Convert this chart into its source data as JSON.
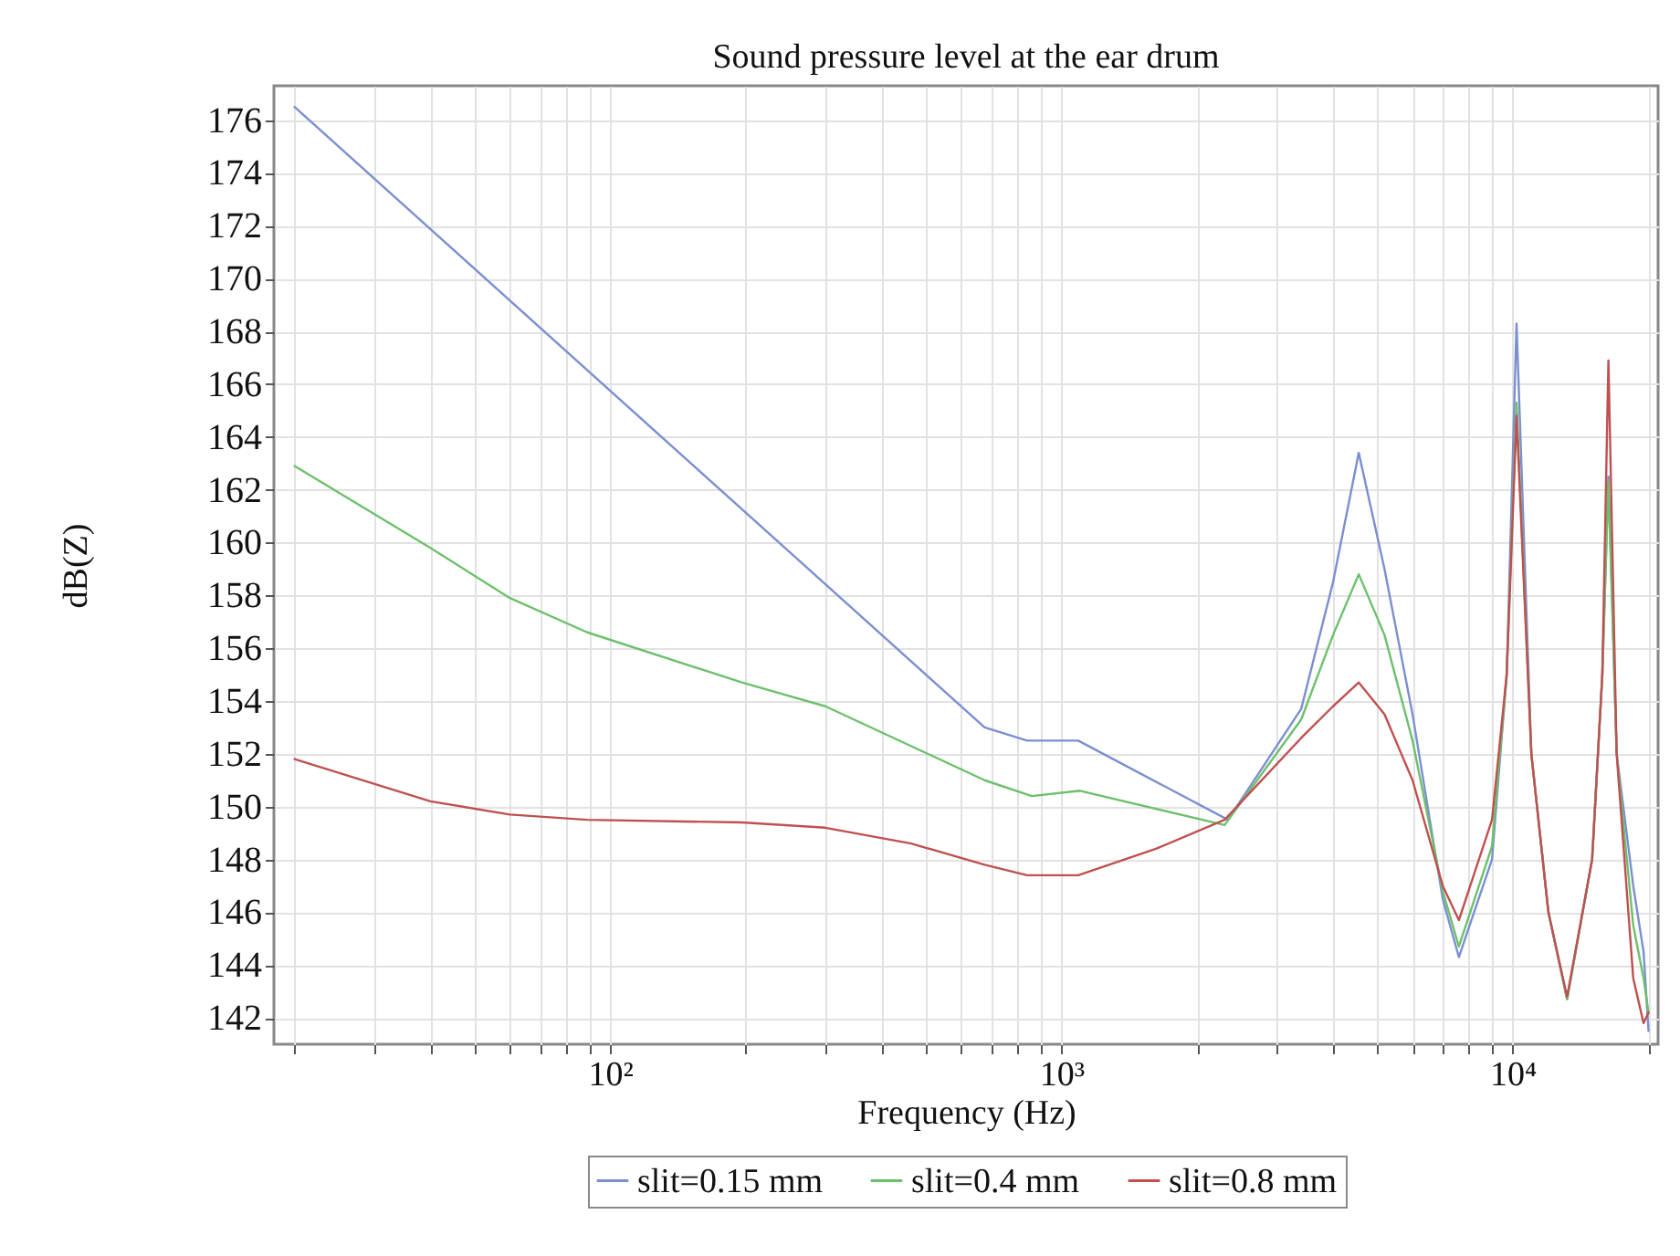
{
  "chart_data": {
    "type": "line",
    "title": "Sound pressure level at the ear drum",
    "xlabel": "Frequency (Hz)",
    "ylabel": "dB(Z)",
    "log": "x",
    "grid": true,
    "legend": "bottom",
    "xlim": [
      18,
      21000
    ],
    "ylim": [
      141,
      177.3
    ],
    "xticks": [
      {
        "value": 20,
        "label": null
      },
      {
        "value": 30,
        "label": null
      },
      {
        "value": 40,
        "label": null
      },
      {
        "value": 50,
        "label": null
      },
      {
        "value": 60,
        "label": null
      },
      {
        "value": 70,
        "label": null
      },
      {
        "value": 80,
        "label": null
      },
      {
        "value": 90,
        "label": null
      },
      {
        "value": 100,
        "label": "10²"
      },
      {
        "value": 200,
        "label": null
      },
      {
        "value": 300,
        "label": null
      },
      {
        "value": 400,
        "label": null
      },
      {
        "value": 500,
        "label": null
      },
      {
        "value": 600,
        "label": null
      },
      {
        "value": 700,
        "label": null
      },
      {
        "value": 800,
        "label": null
      },
      {
        "value": 900,
        "label": null
      },
      {
        "value": 1000,
        "label": "10³"
      },
      {
        "value": 2000,
        "label": null
      },
      {
        "value": 3000,
        "label": null
      },
      {
        "value": 4000,
        "label": null
      },
      {
        "value": 5000,
        "label": null
      },
      {
        "value": 6000,
        "label": null
      },
      {
        "value": 7000,
        "label": null
      },
      {
        "value": 8000,
        "label": null
      },
      {
        "value": 9000,
        "label": null
      },
      {
        "value": 10000,
        "label": "10⁴"
      },
      {
        "value": 20000,
        "label": null
      }
    ],
    "yticks": [
      142,
      144,
      146,
      148,
      150,
      152,
      154,
      156,
      158,
      160,
      162,
      164,
      166,
      168,
      170,
      172,
      174,
      176
    ],
    "series": [
      {
        "name": "slit=0.15 mm",
        "color": "#7b8fd0",
        "x": [
          20,
          271,
          676,
          840,
          1090,
          2340,
          3400,
          4000,
          4560,
          5200,
          6000,
          7000,
          7600,
          9000,
          9700,
          10200,
          11000,
          12000,
          13200,
          15000,
          15800,
          16300,
          17000,
          18500,
          19500,
          20000
        ],
        "values": [
          176.5,
          159.1,
          153.0,
          152.5,
          152.5,
          149.5,
          153.7,
          158.5,
          163.4,
          159.0,
          153.5,
          146.5,
          144.3,
          148.0,
          155.0,
          168.3,
          152.0,
          146.0,
          142.7,
          148.0,
          155.0,
          162.5,
          152.0,
          147.0,
          144.5,
          141.5
        ]
      },
      {
        "name": "slit=0.4 mm",
        "color": "#6cc06c",
        "x": [
          20,
          40,
          60,
          89,
          196,
          300,
          676,
          860,
          1100,
          2300,
          3400,
          4000,
          4560,
          5200,
          6000,
          7000,
          7600,
          9000,
          9700,
          10200,
          11000,
          12000,
          13200,
          15000,
          15800,
          16300,
          17000,
          18500,
          19500,
          20000
        ],
        "values": [
          162.9,
          159.8,
          157.9,
          156.6,
          154.7,
          153.8,
          151.0,
          150.4,
          150.6,
          149.3,
          153.3,
          156.5,
          158.8,
          156.5,
          152.5,
          146.8,
          144.7,
          148.5,
          155.0,
          165.3,
          152.0,
          146.0,
          142.7,
          148.0,
          155.0,
          162.3,
          152.0,
          145.5,
          143.5,
          142.2
        ]
      },
      {
        "name": "slit=0.8 mm",
        "color": "#c05050",
        "x": [
          20,
          40,
          60,
          89,
          196,
          300,
          465,
          676,
          840,
          1090,
          1620,
          2300,
          3400,
          4000,
          4560,
          5200,
          6000,
          7000,
          7600,
          9000,
          9700,
          10200,
          11000,
          12000,
          13200,
          15000,
          15800,
          16300,
          17000,
          18500,
          19500,
          20000
        ],
        "values": [
          151.8,
          150.2,
          149.7,
          149.5,
          149.4,
          149.2,
          148.6,
          147.8,
          147.4,
          147.4,
          148.4,
          149.5,
          152.6,
          153.8,
          154.7,
          153.5,
          151.0,
          147.0,
          145.7,
          149.5,
          155.0,
          164.8,
          152.0,
          146.0,
          142.8,
          148.0,
          155.0,
          166.9,
          152.0,
          143.5,
          141.8,
          142.2
        ]
      }
    ]
  }
}
